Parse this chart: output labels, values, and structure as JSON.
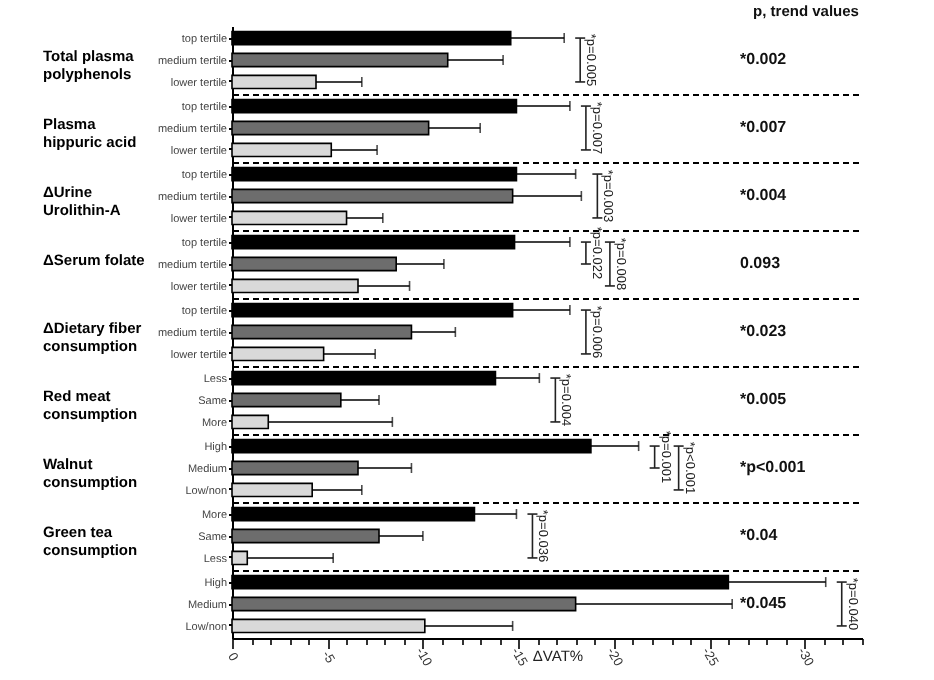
{
  "chart_data": [
    {
      "type": "bar",
      "orientation": "horizontal",
      "title": "Total plasma polyphenols",
      "categories": [
        "top tertile",
        "medium tertile",
        "lower tertile"
      ],
      "values": [
        -14.6,
        -11.3,
        -4.4
      ],
      "errors": [
        2.8,
        2.9,
        2.4
      ],
      "colors": [
        "#000000",
        "#6d6d6d",
        "#d9d9d9"
      ],
      "xlim": [
        0,
        -33
      ],
      "tick_labels": "y",
      "annotations": [
        "*p=0.005"
      ]
    },
    {
      "type": "bar",
      "orientation": "horizontal",
      "title": "Plasma hippuric acid",
      "categories": [
        "top tertile",
        "medium tertile",
        "lower tertile"
      ],
      "values": [
        -14.9,
        -10.3,
        -5.2
      ],
      "errors": [
        2.8,
        2.7,
        2.4
      ],
      "colors": [
        "#000000",
        "#6d6d6d",
        "#d9d9d9"
      ],
      "xlim": [
        0,
        -33
      ],
      "tick_labels": "y",
      "annotations": [
        "*p=0.007"
      ]
    },
    {
      "type": "bar",
      "orientation": "horizontal",
      "title": "ΔUrine Urolithin-A",
      "categories": [
        "top tertile",
        "medium tertile",
        "lower tertile"
      ],
      "values": [
        -14.9,
        -14.7,
        -6.0
      ],
      "errors": [
        3.1,
        3.6,
        1.9
      ],
      "colors": [
        "#000000",
        "#6d6d6d",
        "#d9d9d9"
      ],
      "xlim": [
        0,
        -33
      ],
      "tick_labels": "y",
      "annotations": [
        "*p=0.003"
      ]
    },
    {
      "type": "bar",
      "orientation": "horizontal",
      "title": "ΔSerum folate",
      "categories": [
        "top tertile",
        "medium tertile",
        "lower tertile"
      ],
      "values": [
        -14.8,
        -8.6,
        -6.6
      ],
      "errors": [
        2.9,
        2.5,
        2.7
      ],
      "colors": [
        "#000000",
        "#6d6d6d",
        "#d9d9d9"
      ],
      "xlim": [
        0,
        -33
      ],
      "tick_labels": "y",
      "annotations": [
        "*p=0.022",
        "*p=0.008"
      ]
    },
    {
      "type": "bar",
      "orientation": "horizontal",
      "title": "ΔDietary fiber consumption",
      "categories": [
        "top tertile",
        "medium tertile",
        "lower tertile"
      ],
      "values": [
        -14.7,
        -9.4,
        -4.8
      ],
      "errors": [
        3.0,
        2.3,
        2.7
      ],
      "colors": [
        "#000000",
        "#6d6d6d",
        "#d9d9d9"
      ],
      "xlim": [
        0,
        -33
      ],
      "tick_labels": "y",
      "annotations": [
        "*p=0.006"
      ]
    },
    {
      "type": "bar",
      "orientation": "horizontal",
      "title": "Red meat consumption",
      "categories": [
        "Less",
        "Same",
        "More"
      ],
      "values": [
        -13.8,
        -5.7,
        -1.9
      ],
      "errors": [
        2.3,
        2.0,
        6.5
      ],
      "colors": [
        "#000000",
        "#6d6d6d",
        "#d9d9d9"
      ],
      "xlim": [
        0,
        -33
      ],
      "tick_labels": "y",
      "annotations": [
        "*p=0.004"
      ]
    },
    {
      "type": "bar",
      "orientation": "horizontal",
      "title": "Walnut consumption",
      "categories": [
        "High",
        "Medium",
        "Low/non"
      ],
      "values": [
        -18.8,
        -6.6,
        -4.2
      ],
      "errors": [
        2.5,
        2.8,
        2.6
      ],
      "colors": [
        "#000000",
        "#6d6d6d",
        "#d9d9d9"
      ],
      "xlim": [
        0,
        -33
      ],
      "tick_labels": "y",
      "annotations": [
        "*p=0.001",
        "*p<0.001"
      ]
    },
    {
      "type": "bar",
      "orientation": "horizontal",
      "title": "Green tea consumption",
      "categories": [
        "More",
        "Same",
        "Less"
      ],
      "values": [
        -12.7,
        -7.7,
        -0.8
      ],
      "errors": [
        2.2,
        2.3,
        4.5
      ],
      "colors": [
        "#000000",
        "#6d6d6d",
        "#d9d9d9"
      ],
      "xlim": [
        0,
        -33
      ],
      "tick_labels": "y",
      "annotations": [
        "*p=0.036"
      ]
    },
    {
      "type": "bar",
      "orientation": "horizontal",
      "categories": [
        "High",
        "Medium",
        "Low/non"
      ],
      "values": [
        -26.0,
        -18.0,
        -10.1
      ],
      "errors": [
        5.1,
        8.2,
        4.6
      ],
      "colors": [
        "#000000",
        "#6d6d6d",
        "#d9d9d9"
      ],
      "xlim": [
        0,
        -33
      ],
      "xlabel": "ΔVAT%",
      "xticks": [
        0,
        {
          "value": -1,
          "label": null
        },
        {
          "value": -2,
          "label": null
        },
        {
          "value": -3,
          "label": null
        },
        {
          "value": -4,
          "label": null
        },
        -5,
        {
          "value": -6,
          "label": null
        },
        {
          "value": -7,
          "label": null
        },
        {
          "value": -8,
          "label": null
        },
        {
          "value": -9,
          "label": null
        },
        -10,
        {
          "value": -11,
          "label": null
        },
        {
          "value": -12,
          "label": null
        },
        {
          "value": -13,
          "label": null
        },
        {
          "value": -14,
          "label": null
        },
        -15,
        {
          "value": -16,
          "label": null
        },
        {
          "value": -17,
          "label": null
        },
        {
          "value": -18,
          "label": null
        },
        {
          "value": -19,
          "label": null
        },
        -20,
        {
          "value": -21,
          "label": null
        },
        {
          "value": -22,
          "label": null
        },
        {
          "value": -23,
          "label": null
        },
        {
          "value": -24,
          "label": null
        },
        -25,
        {
          "value": -26,
          "label": null
        },
        {
          "value": -27,
          "label": null
        },
        {
          "value": -28,
          "label": null
        },
        {
          "value": -29,
          "label": null
        },
        -30,
        {
          "value": -31,
          "label": null
        },
        {
          "value": -32,
          "label": null
        },
        {
          "value": -33,
          "label": null
        }
      ],
      "annotations": [
        "*p=0.040"
      ]
    },
    {
      "type": "other",
      "title": "p, trend values",
      "annotations": [
        "*0.002",
        "*0.007",
        "*0.004",
        "0.093",
        "*0.023",
        "*0.005",
        "*p<0.001",
        "*0.04",
        "*0.045"
      ]
    }
  ]
}
